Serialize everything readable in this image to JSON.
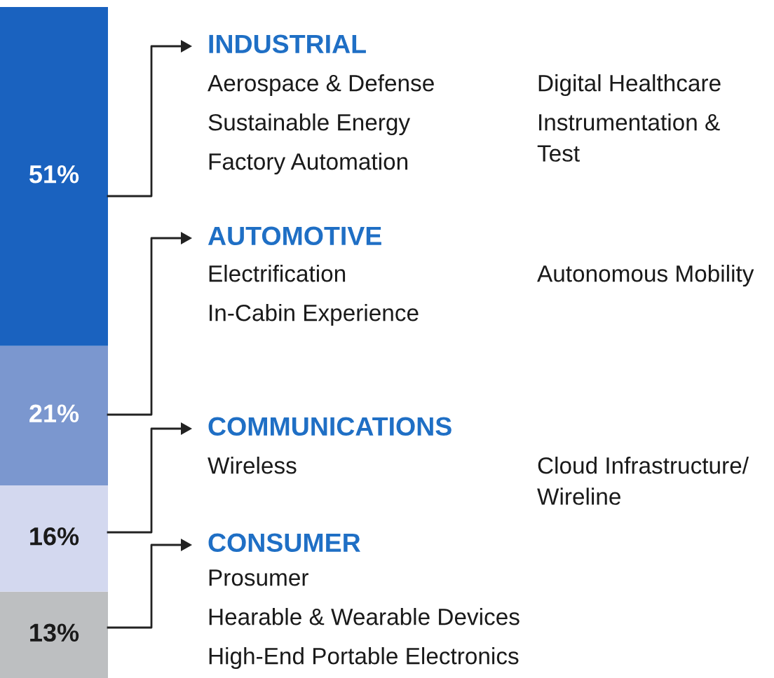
{
  "chart_data": {
    "type": "bar",
    "stacked": true,
    "categories": [
      null
    ],
    "series": [
      {
        "name": "CONSUMER",
        "color": "#bdbfc1",
        "values": [
          13
        ],
        "value_labels": [
          "13%"
        ]
      },
      {
        "name": "COMMUNICATIONS",
        "color": "#d3d8ef",
        "values": [
          16
        ],
        "value_labels": [
          "16%"
        ]
      },
      {
        "name": "AUTOMOTIVE",
        "color": "#7b97cf",
        "values": [
          21
        ],
        "value_labels": [
          "21%"
        ]
      },
      {
        "name": "INDUSTRIAL",
        "color": "#1a62bf",
        "values": [
          51
        ],
        "value_labels": [
          "51%"
        ]
      }
    ],
    "annotations": [
      "Aerospace & Defense",
      "Sustainable Energy",
      "Factory Automation",
      "Digital Healthcare",
      "Instrumentation &\nTest",
      "Electrification",
      "In-Cabin Experience",
      "Autonomous Mobility",
      "Wireless",
      "Cloud Infrastructure/\nWireline",
      "Prosumer",
      "Hearable & Wearable Devices",
      "High-End Portable Electronics"
    ]
  }
}
